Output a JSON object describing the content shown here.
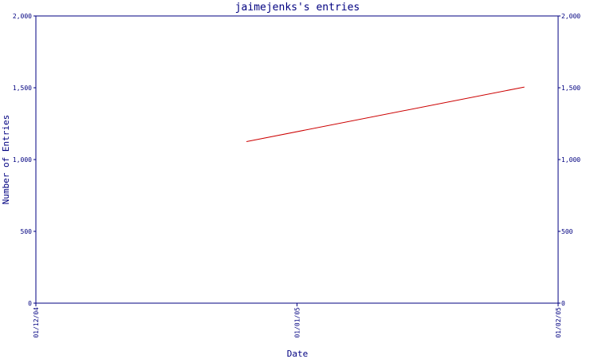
{
  "chart_data": {
    "type": "line",
    "title": "jaimejenks's entries",
    "xlabel": "Date",
    "ylabel": "Number of Entries",
    "x_ticks": [
      "01/12/04",
      "01/01/05",
      "01/02/05"
    ],
    "xlim": [
      "2004-12-01",
      "2005-02-01"
    ],
    "ylim": [
      0,
      2000
    ],
    "y_ticks": [
      0,
      500,
      1000,
      1500,
      2000
    ],
    "y_tick_labels": [
      "0",
      "500",
      "1,000",
      "1,500",
      "2,000"
    ],
    "right_axis": true,
    "grid": false,
    "colors": {
      "axis": "#000080",
      "series": "#cc0000"
    },
    "series": [
      {
        "x": [
          "2004-12-26",
          "2005-01-28"
        ],
        "y": [
          1125,
          1505
        ]
      }
    ]
  }
}
